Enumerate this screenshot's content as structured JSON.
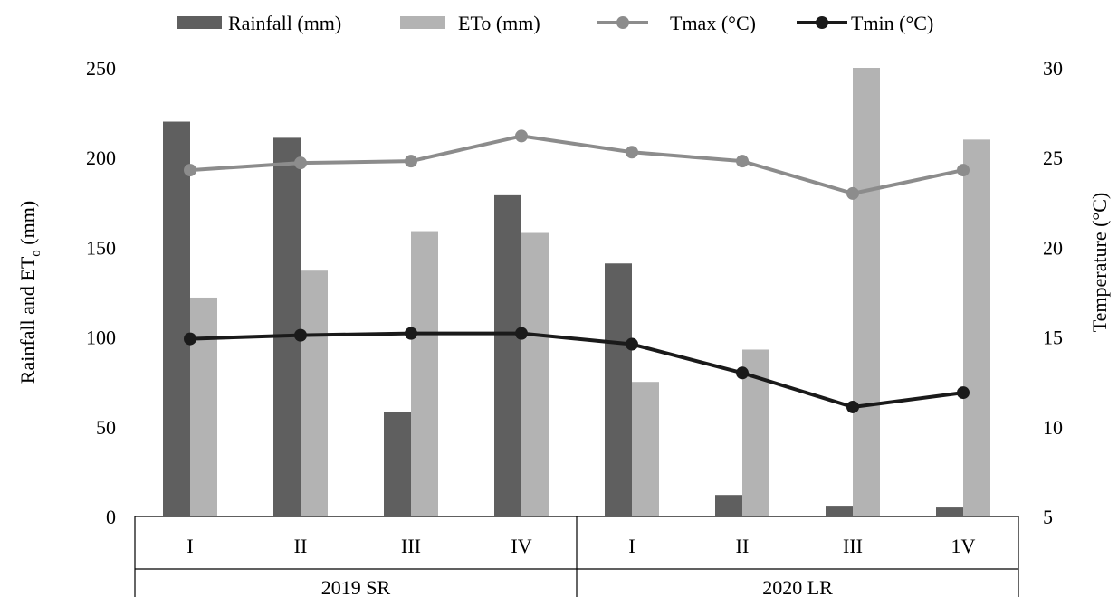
{
  "chart_data": {
    "type": "bar",
    "groups": [
      {
        "label": "2019 SR",
        "categories": [
          "I",
          "II",
          "III",
          "IV"
        ]
      },
      {
        "label": "2020 LR",
        "categories": [
          "I",
          "II",
          "III",
          "1V"
        ]
      }
    ],
    "categories": [
      "I",
      "II",
      "III",
      "IV",
      "I",
      "II",
      "III",
      "1V"
    ],
    "series": [
      {
        "name": "Rainfall (mm)",
        "kind": "bar",
        "axis": "left",
        "color": "#5f5f5f",
        "values": [
          220,
          211,
          58,
          179,
          141,
          12,
          6,
          5
        ]
      },
      {
        "name": "ETo (mm)",
        "kind": "bar",
        "axis": "left",
        "color": "#b3b3b3",
        "values": [
          122,
          137,
          159,
          158,
          75,
          93,
          250,
          210
        ]
      },
      {
        "name": "Tmax (°C)",
        "kind": "line",
        "axis": "right",
        "color": "#8c8c8c",
        "values": [
          24.3,
          24.7,
          24.8,
          26.2,
          25.3,
          24.8,
          23.0,
          24.3
        ]
      },
      {
        "name": "Tmin (°C)",
        "kind": "line",
        "axis": "right",
        "color": "#1a1a1a",
        "values": [
          14.9,
          15.1,
          15.2,
          15.2,
          14.6,
          13.0,
          11.1,
          11.9
        ]
      }
    ],
    "y_left": {
      "label_main": "Rainfall and ET",
      "label_sub": "o",
      "label_tail": " (mm)",
      "range": [
        0,
        250
      ],
      "ticks": [
        "0",
        "50",
        "100",
        "150",
        "200",
        "250"
      ]
    },
    "y_right": {
      "label": "Temperature (°C)",
      "range": [
        5,
        30
      ],
      "ticks": [
        "5",
        "10",
        "15",
        "20",
        "25",
        "30"
      ]
    },
    "grid": false,
    "legend_position": "top"
  }
}
